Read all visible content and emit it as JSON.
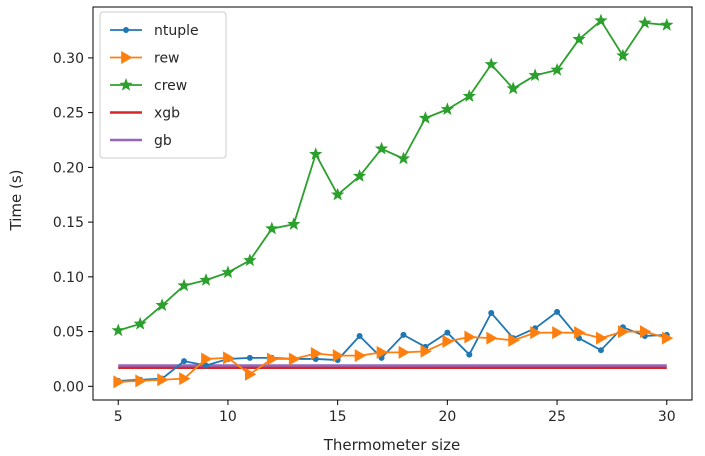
{
  "chart_data": {
    "type": "line",
    "title": "",
    "xlabel": "Thermometer size",
    "ylabel": "Time (s)",
    "xlim": [
      3.85,
      31.15
    ],
    "ylim": [
      -0.0125,
      0.3465
    ],
    "xticks": [
      5,
      10,
      15,
      20,
      25,
      30
    ],
    "xtick_labels": [
      "5",
      "10",
      "15",
      "20",
      "25",
      "30"
    ],
    "yticks": [
      0.0,
      0.05,
      0.1,
      0.15,
      0.2,
      0.25,
      0.3
    ],
    "ytick_labels": [
      "0.00",
      "0.05",
      "0.10",
      "0.15",
      "0.20",
      "0.25",
      "0.30"
    ],
    "grid": false,
    "legend_position": "top-left",
    "x": [
      5,
      6,
      7,
      8,
      9,
      10,
      11,
      12,
      13,
      14,
      15,
      16,
      17,
      18,
      19,
      20,
      21,
      22,
      23,
      24,
      25,
      26,
      27,
      28,
      29,
      30
    ],
    "series": [
      {
        "name": "ntuple",
        "color": "#1f77b4",
        "marker": "point",
        "values": [
          0.005,
          0.006,
          0.007,
          0.023,
          0.019,
          0.025,
          0.026,
          0.026,
          0.025,
          0.025,
          0.024,
          0.046,
          0.026,
          0.047,
          0.036,
          0.049,
          0.029,
          0.067,
          0.044,
          0.053,
          0.068,
          0.044,
          0.033,
          0.054,
          0.046,
          0.047
        ]
      },
      {
        "name": "rew",
        "color": "#ff7f0e",
        "marker": "triangle-right",
        "values": [
          0.004,
          0.005,
          0.006,
          0.007,
          0.025,
          0.026,
          0.011,
          0.025,
          0.025,
          0.03,
          0.028,
          0.028,
          0.031,
          0.031,
          0.032,
          0.041,
          0.045,
          0.044,
          0.042,
          0.049,
          0.049,
          0.049,
          0.044,
          0.05,
          0.05,
          0.044
        ]
      },
      {
        "name": "crew",
        "color": "#2ca02c",
        "marker": "star",
        "values": [
          0.051,
          0.057,
          0.074,
          0.092,
          0.097,
          0.104,
          0.115,
          0.144,
          0.148,
          0.212,
          0.175,
          0.192,
          0.217,
          0.208,
          0.245,
          0.253,
          0.265,
          0.294,
          0.272,
          0.284,
          0.289,
          0.317,
          0.334,
          0.302,
          0.332,
          0.33
        ]
      },
      {
        "name": "xgb",
        "color": "#d62728",
        "marker": "none",
        "values": [
          0.017,
          0.017,
          0.017,
          0.017,
          0.017,
          0.017,
          0.017,
          0.017,
          0.017,
          0.017,
          0.017,
          0.017,
          0.017,
          0.017,
          0.017,
          0.017,
          0.017,
          0.017,
          0.017,
          0.017,
          0.017,
          0.017,
          0.017,
          0.017,
          0.017,
          0.017
        ]
      },
      {
        "name": "gb",
        "color": "#9467bd",
        "marker": "none",
        "values": [
          0.019,
          0.019,
          0.019,
          0.019,
          0.019,
          0.019,
          0.019,
          0.019,
          0.019,
          0.019,
          0.019,
          0.019,
          0.019,
          0.019,
          0.019,
          0.019,
          0.019,
          0.019,
          0.019,
          0.019,
          0.019,
          0.019,
          0.019,
          0.019,
          0.019,
          0.019
        ]
      }
    ]
  }
}
